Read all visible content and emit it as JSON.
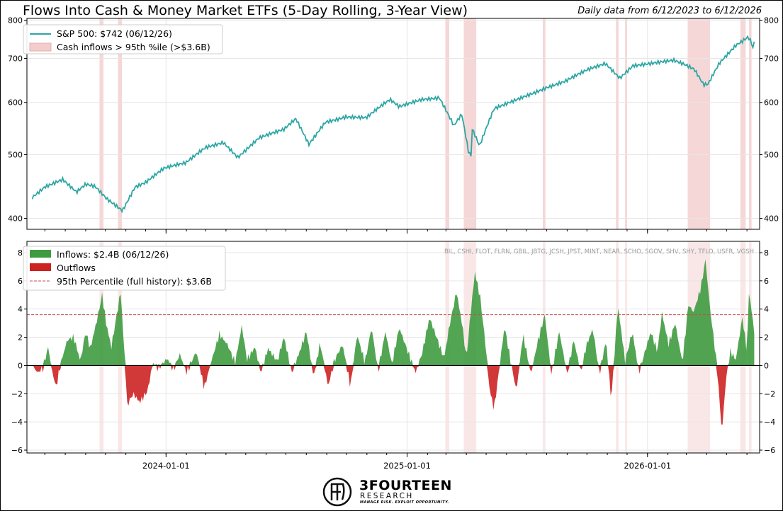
{
  "header": {
    "title": "Flows Into Cash & Money Market ETFs (5-Day Rolling, 3-Year View)",
    "subtitle": "Daily data from 6/12/2023 to 6/12/2026"
  },
  "brand": {
    "name": "3FOURTEEN",
    "sub": "RESEARCH",
    "tagline": "MANAGE RISK. EXPLOIT OPPORTUNITY."
  },
  "chart_data": [
    {
      "type": "line",
      "series": [
        {
          "name": "S&P 500: $742 (06/12/26)",
          "color": "#2ca6a4"
        }
      ],
      "x_start": "2023-06-12",
      "x_end": "2026-06-12",
      "ylim": [
        385,
        805
      ],
      "log_scale": true,
      "yticks": [
        400,
        500,
        600,
        700,
        800
      ],
      "shaded_label": "Cash inflows > 95th %ile (>$3.6B)",
      "shaded_color": "#f4cccc",
      "anchors": [
        [
          "2023-06-12",
          432
        ],
        [
          "2023-07-01",
          448
        ],
        [
          "2023-07-28",
          458
        ],
        [
          "2023-08-18",
          437
        ],
        [
          "2023-09-01",
          449
        ],
        [
          "2023-09-15",
          446
        ],
        [
          "2023-10-03",
          428
        ],
        [
          "2023-10-27",
          412
        ],
        [
          "2023-11-15",
          448
        ],
        [
          "2023-12-01",
          455
        ],
        [
          "2023-12-28",
          476
        ],
        [
          "2024-01-31",
          484
        ],
        [
          "2024-03-01",
          512
        ],
        [
          "2024-03-28",
          523
        ],
        [
          "2024-04-19",
          497
        ],
        [
          "2024-05-21",
          530
        ],
        [
          "2024-06-28",
          544
        ],
        [
          "2024-07-16",
          565
        ],
        [
          "2024-08-05",
          518
        ],
        [
          "2024-08-30",
          562
        ],
        [
          "2024-09-30",
          572
        ],
        [
          "2024-10-31",
          568
        ],
        [
          "2024-12-06",
          604
        ],
        [
          "2024-12-20",
          590
        ],
        [
          "2025-01-23",
          608
        ],
        [
          "2025-02-19",
          612
        ],
        [
          "2025-03-13",
          554
        ],
        [
          "2025-03-25",
          575
        ],
        [
          "2025-04-04",
          505
        ],
        [
          "2025-04-08",
          496
        ],
        [
          "2025-04-09",
          548
        ],
        [
          "2025-04-21",
          513
        ],
        [
          "2025-05-13",
          585
        ],
        [
          "2025-06-27",
          614
        ],
        [
          "2025-07-31",
          633
        ],
        [
          "2025-08-29",
          645
        ],
        [
          "2025-09-30",
          669
        ],
        [
          "2025-10-29",
          687
        ],
        [
          "2025-11-20",
          655
        ],
        [
          "2025-12-10",
          685
        ],
        [
          "2026-01-15",
          690
        ],
        [
          "2026-02-10",
          693
        ],
        [
          "2026-02-27",
          682
        ],
        [
          "2026-03-13",
          672
        ],
        [
          "2026-03-27",
          638
        ],
        [
          "2026-04-03",
          640
        ],
        [
          "2026-04-20",
          690
        ],
        [
          "2026-05-15",
          735
        ],
        [
          "2026-06-03",
          756
        ],
        [
          "2026-06-08",
          740
        ],
        [
          "2026-06-10",
          726
        ],
        [
          "2026-06-12",
          742
        ]
      ]
    },
    {
      "type": "area",
      "series": [
        {
          "name": "Inflows: $2.4B (06/12/26)",
          "color": "#3f9b40"
        },
        {
          "name": "Outflows",
          "color": "#cc2222"
        }
      ],
      "threshold": {
        "name": "95th Percentile (full history): $3.6B",
        "value": 3.6,
        "color": "#c0504d"
      },
      "ylim": [
        -6.2,
        8.8
      ],
      "yticks": [
        -6,
        -4,
        -2,
        0,
        2,
        4,
        6,
        8
      ],
      "tickers": "BIL, CSHI, FLOT, FLRN, GBIL, JBTG, JCSH, JPST, MINT, NEAR, SCHO, SGOV, SHV, SHY, TFLO, USFR, VGSH",
      "anchors": [
        [
          "2023-06-12",
          0.0
        ],
        [
          "2023-06-20",
          -0.5
        ],
        [
          "2023-06-28",
          -0.2
        ],
        [
          "2023-07-06",
          1.3
        ],
        [
          "2023-07-12",
          -0.4
        ],
        [
          "2023-07-18",
          -1.5
        ],
        [
          "2023-07-26",
          0.3
        ],
        [
          "2023-08-04",
          1.8
        ],
        [
          "2023-08-14",
          2.0
        ],
        [
          "2023-08-24",
          0.3
        ],
        [
          "2023-09-01",
          2.4
        ],
        [
          "2023-09-08",
          1.2
        ],
        [
          "2023-09-19",
          3.4
        ],
        [
          "2023-09-26",
          5.0
        ],
        [
          "2023-10-02",
          3.0
        ],
        [
          "2023-10-10",
          1.3
        ],
        [
          "2023-10-16",
          3.0
        ],
        [
          "2023-10-24",
          5.2
        ],
        [
          "2023-10-31",
          0.0
        ],
        [
          "2023-11-03",
          -2.8
        ],
        [
          "2023-11-12",
          -2.0
        ],
        [
          "2023-11-22",
          -2.6
        ],
        [
          "2023-12-04",
          -1.8
        ],
        [
          "2023-12-12",
          0.2
        ],
        [
          "2023-12-20",
          -0.2
        ],
        [
          "2024-01-03",
          0.5
        ],
        [
          "2024-01-12",
          -0.3
        ],
        [
          "2024-01-22",
          0.8
        ],
        [
          "2024-02-01",
          -0.5
        ],
        [
          "2024-02-16",
          1.0
        ],
        [
          "2024-02-28",
          -1.6
        ],
        [
          "2024-03-11",
          0.5
        ],
        [
          "2024-03-22",
          2.2
        ],
        [
          "2024-04-03",
          1.5
        ],
        [
          "2024-04-15",
          0.2
        ],
        [
          "2024-04-25",
          2.8
        ],
        [
          "2024-05-03",
          0.4
        ],
        [
          "2024-05-15",
          1.3
        ],
        [
          "2024-05-24",
          -0.5
        ],
        [
          "2024-06-04",
          1.2
        ],
        [
          "2024-06-18",
          0.3
        ],
        [
          "2024-06-28",
          2.0
        ],
        [
          "2024-07-10",
          -0.5
        ],
        [
          "2024-07-22",
          1.0
        ],
        [
          "2024-08-01",
          2.4
        ],
        [
          "2024-08-12",
          -0.8
        ],
        [
          "2024-08-22",
          1.6
        ],
        [
          "2024-09-03",
          -1.5
        ],
        [
          "2024-09-13",
          0.4
        ],
        [
          "2024-09-25",
          1.5
        ],
        [
          "2024-10-07",
          -1.5
        ],
        [
          "2024-10-17",
          2.2
        ],
        [
          "2024-10-29",
          0.2
        ],
        [
          "2024-11-08",
          2.7
        ],
        [
          "2024-11-18",
          -0.4
        ],
        [
          "2024-11-29",
          2.4
        ],
        [
          "2024-12-09",
          0.1
        ],
        [
          "2024-12-20",
          2.7
        ],
        [
          "2025-01-02",
          1.0
        ],
        [
          "2025-01-14",
          -0.5
        ],
        [
          "2025-01-24",
          0.9
        ],
        [
          "2025-02-04",
          3.4
        ],
        [
          "2025-02-14",
          2.1
        ],
        [
          "2025-02-26",
          0.5
        ],
        [
          "2025-03-07",
          3.0
        ],
        [
          "2025-03-17",
          5.2
        ],
        [
          "2025-03-26",
          2.8
        ],
        [
          "2025-04-01",
          0.5
        ],
        [
          "2025-04-07",
          3.5
        ],
        [
          "2025-04-14",
          6.6
        ],
        [
          "2025-04-22",
          4.8
        ],
        [
          "2025-04-30",
          1.5
        ],
        [
          "2025-05-06",
          -1.6
        ],
        [
          "2025-05-13",
          -3.1
        ],
        [
          "2025-05-21",
          -0.2
        ],
        [
          "2025-05-29",
          2.8
        ],
        [
          "2025-06-06",
          0.6
        ],
        [
          "2025-06-16",
          -1.8
        ],
        [
          "2025-06-26",
          2.2
        ],
        [
          "2025-07-08",
          -0.6
        ],
        [
          "2025-07-18",
          1.6
        ],
        [
          "2025-07-29",
          3.6
        ],
        [
          "2025-08-08",
          -0.6
        ],
        [
          "2025-08-20",
          2.4
        ],
        [
          "2025-09-01",
          -0.6
        ],
        [
          "2025-09-11",
          1.8
        ],
        [
          "2025-09-22",
          -0.5
        ],
        [
          "2025-09-30",
          1.4
        ],
        [
          "2025-10-10",
          2.6
        ],
        [
          "2025-10-20",
          -0.6
        ],
        [
          "2025-10-30",
          1.8
        ],
        [
          "2025-11-07",
          -2.5
        ],
        [
          "2025-11-17",
          4.3
        ],
        [
          "2025-11-28",
          0.3
        ],
        [
          "2025-12-09",
          2.4
        ],
        [
          "2025-12-19",
          -0.5
        ],
        [
          "2026-01-06",
          2.4
        ],
        [
          "2026-01-16",
          1.0
        ],
        [
          "2026-01-23",
          3.7
        ],
        [
          "2026-02-02",
          1.5
        ],
        [
          "2026-02-12",
          3.0
        ],
        [
          "2026-02-23",
          0.2
        ],
        [
          "2026-03-04",
          4.3
        ],
        [
          "2026-03-12",
          3.8
        ],
        [
          "2026-03-23",
          5.5
        ],
        [
          "2026-03-30",
          7.5
        ],
        [
          "2026-04-06",
          4.0
        ],
        [
          "2026-04-14",
          1.0
        ],
        [
          "2026-04-18",
          -1.0
        ],
        [
          "2026-04-24",
          -4.8
        ],
        [
          "2026-04-30",
          -1.0
        ],
        [
          "2026-05-07",
          1.0
        ],
        [
          "2026-05-15",
          0.4
        ],
        [
          "2026-05-25",
          3.4
        ],
        [
          "2026-06-01",
          1.0
        ],
        [
          "2026-06-04",
          5.2
        ],
        [
          "2026-06-08",
          3.9
        ],
        [
          "2026-06-12",
          2.4
        ]
      ]
    }
  ],
  "x_axis": {
    "ticks": [
      "2024-01-01",
      "2025-01-01",
      "2026-01-01"
    ]
  },
  "highlight_bands": [
    [
      "2023-09-22",
      "2023-09-28"
    ],
    [
      "2023-10-20",
      "2023-10-26"
    ],
    [
      "2025-02-28",
      "2025-03-06"
    ],
    [
      "2025-03-28",
      "2025-04-16"
    ],
    [
      "2025-07-26",
      "2025-07-30"
    ],
    [
      "2025-11-14",
      "2025-11-18"
    ],
    [
      "2025-11-28",
      "2025-12-01"
    ],
    [
      "2026-03-03",
      "2026-04-06"
    ],
    [
      "2026-05-22",
      "2026-05-30"
    ],
    [
      "2026-06-04",
      "2026-06-08"
    ]
  ]
}
